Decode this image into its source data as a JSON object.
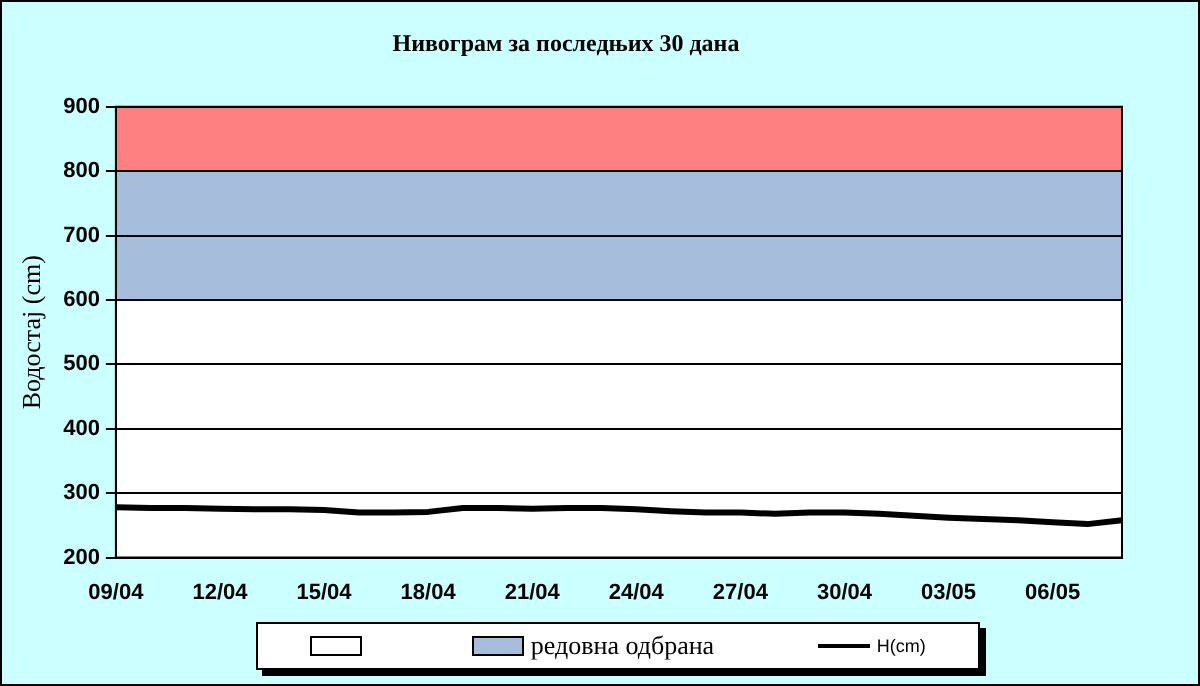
{
  "chart_data": {
    "type": "line",
    "title": "Нивограм за последњих 30 дана",
    "ylabel": "Водостај (cm)",
    "categories": [
      "09/04",
      null,
      null,
      "12/04",
      null,
      null,
      "15/04",
      null,
      null,
      "18/04",
      null,
      null,
      "21/04",
      null,
      null,
      "24/04",
      null,
      null,
      "27/04",
      null,
      null,
      "30/04",
      null,
      null,
      "03/05",
      null,
      null,
      "06/05",
      null,
      null
    ],
    "series": [
      {
        "name": "H(cm)",
        "color": "#000000",
        "values": [
          278,
          277,
          277,
          276,
          275,
          275,
          274,
          270,
          270,
          271,
          277,
          277,
          276,
          277,
          277,
          275,
          272,
          270,
          270,
          268,
          270,
          270,
          268,
          265,
          262,
          260,
          258,
          255,
          252,
          258
        ]
      }
    ],
    "bands": [
      {
        "axis": "y",
        "from": 200,
        "to": 600,
        "label": null,
        "color": "#ffffff"
      },
      {
        "axis": "y",
        "from": 600,
        "to": 800,
        "label": "редовна одбрана",
        "color": "#a6bddb"
      },
      {
        "axis": "y",
        "from": 800,
        "to": 900,
        "color": "#ff8080"
      }
    ],
    "ylim": [
      200,
      900
    ],
    "yticks": [
      200,
      300,
      400,
      500,
      600,
      700,
      800,
      900
    ],
    "grid": "y",
    "legend": "bottom",
    "marker": "none",
    "line_style": "solid"
  }
}
